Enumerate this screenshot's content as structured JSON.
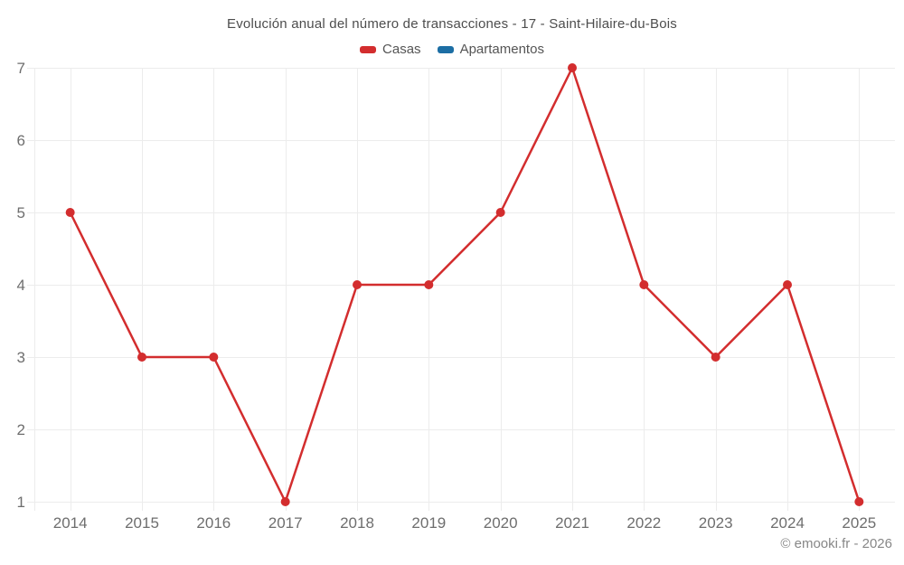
{
  "header": {
    "title": "Evolución anual del número de transacciones - 17 - Saint-Hilaire-du-Bois"
  },
  "legend": {
    "items": [
      {
        "label": "Casas",
        "color": "#d32d2e"
      },
      {
        "label": "Apartamentos",
        "color": "#1c6ea4"
      }
    ]
  },
  "footer": {
    "credit": "© emooki.fr - 2026"
  },
  "chart_data": {
    "type": "line",
    "title": "Evolución anual del número de transacciones - 17 - Saint-Hilaire-du-Bois",
    "x": [
      "2014",
      "2015",
      "2016",
      "2017",
      "2018",
      "2019",
      "2020",
      "2021",
      "2022",
      "2023",
      "2024",
      "2025"
    ],
    "series": [
      {
        "name": "Casas",
        "color": "#d32d2e",
        "values": [
          5,
          3,
          3,
          1,
          4,
          4,
          5,
          7,
          4,
          3,
          4,
          1
        ]
      },
      {
        "name": "Apartamentos",
        "color": "#1c6ea4",
        "values": []
      }
    ],
    "yticks": [
      1,
      2,
      3,
      4,
      5,
      6,
      7
    ],
    "ylim": [
      1,
      7
    ],
    "xlabel": "",
    "ylabel": "",
    "grid": true,
    "legend_position": "top",
    "grid_color": "#ececec",
    "axis_label_color": "#6e6e6e"
  }
}
